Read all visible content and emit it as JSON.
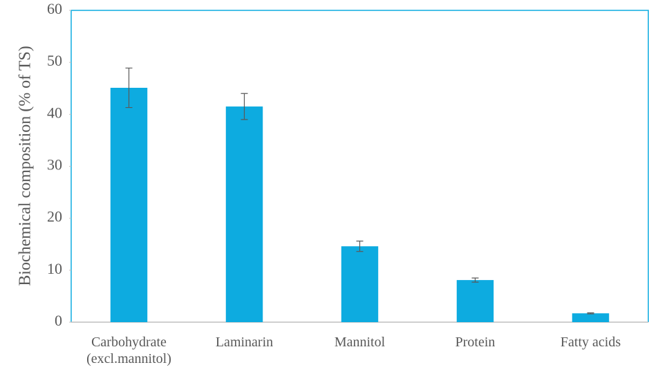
{
  "chart_data": {
    "type": "bar",
    "y_label": "Biochemical composition (% of TS)",
    "categories": [
      "Carbohydrate (excl.mannitol)",
      "Laminarin",
      "Mannitol",
      "Protein",
      "Fatty acids"
    ],
    "values": [
      45.1,
      41.5,
      14.6,
      8.1,
      1.7
    ],
    "errors": [
      3.8,
      2.5,
      1.0,
      0.4,
      0.1
    ],
    "color": "#0dabe0",
    "ylim": [
      0,
      60
    ],
    "yticks": [
      0,
      10,
      20,
      30,
      40,
      50,
      60
    ]
  }
}
